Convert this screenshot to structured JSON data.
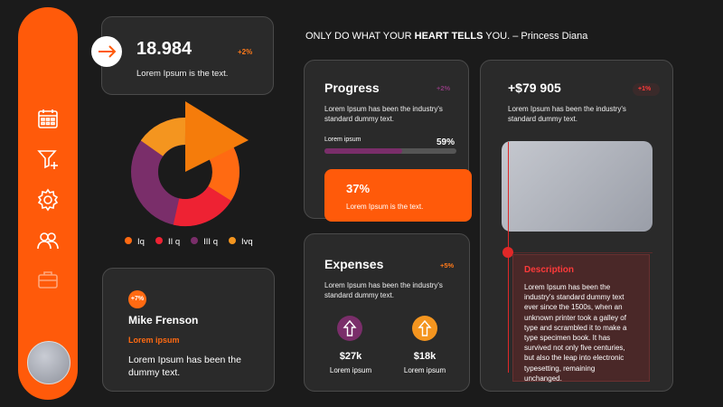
{
  "quote": {
    "pre": "ONLY DO WHAT YOUR ",
    "bold": "HEART TELLS",
    "post": " YOU. – Princess Diana"
  },
  "stat_card": {
    "value": "18.984",
    "change": "+2%",
    "text": "Lorem Ipsum is the text."
  },
  "donut": {
    "legend": [
      {
        "label": "Iq",
        "color": "#ff6a12"
      },
      {
        "label": "II q",
        "color": "#ee2233"
      },
      {
        "label": "III q",
        "color": "#7a2e6a"
      },
      {
        "label": "Ivq",
        "color": "#f4951f"
      }
    ]
  },
  "profile": {
    "badge": "+7%",
    "name": "Mike Frenson",
    "role": "Lorem ipsum",
    "text_line1": "Lorem Ipsum has been the",
    "text_line2": "dummy text."
  },
  "progress_card": {
    "title": "Progress",
    "change": "+2%",
    "desc_line1": "Lorem Ipsum has been the industry's",
    "desc_line2": "standard dummy text.",
    "bar_label": "Lorem ipsum",
    "bar_value": "59%",
    "bar_fraction": 0.59
  },
  "orange_card": {
    "value": "37%",
    "text": "Lorem Ipsum is the text."
  },
  "expenses_card": {
    "title": "Expenses",
    "change": "+5%",
    "desc_line1": "Lorem Ipsum has been the industry's",
    "desc_line2": "standard dummy text.",
    "items": [
      {
        "value": "$27k",
        "label": "Lorem ipsum",
        "color": "#7a2e6a"
      },
      {
        "value": "$18k",
        "label": "Lorem ipsum",
        "color": "#f4951f"
      }
    ]
  },
  "money_card": {
    "value": "+$79 905",
    "change": "+1%",
    "desc_line1": "Lorem Ipsum has been the industry's",
    "desc_line2": "standard dummy text."
  },
  "description": {
    "title": "Description",
    "lines": [
      "Lorem Ipsum has been the",
      "industry's standard dummy text",
      "ever since the 1500s, when an",
      "unknown printer took a galley of",
      "type and scrambled it to make a",
      "type specimen book. It has",
      "survived not only five centuries,",
      "but also the leap into electronic",
      "typesetting, remaining",
      "unchanged."
    ]
  },
  "sidebar": {
    "icons": [
      "calendar-icon",
      "filter-add-icon",
      "settings-gear-icon",
      "users-icon",
      "briefcase-icon"
    ]
  }
}
